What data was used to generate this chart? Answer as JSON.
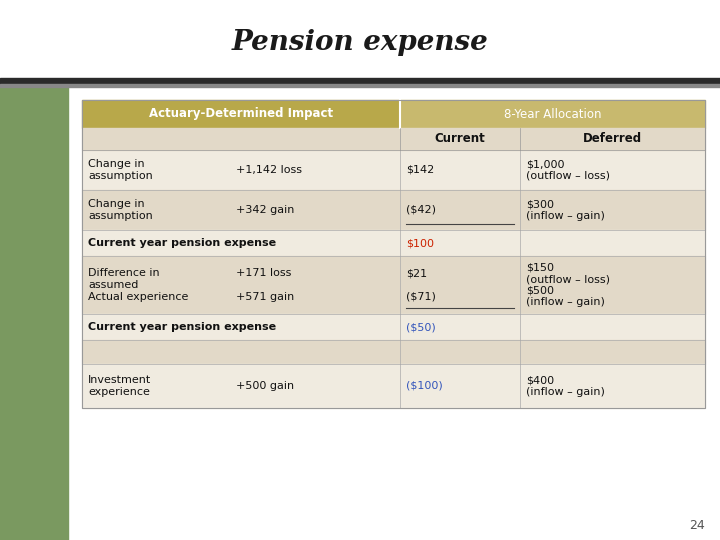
{
  "title": "Pension expense",
  "page_num": "24",
  "bg_color": "#ffffff",
  "left_sidebar_color": "#7a9960",
  "topbar_color": "#2a2a2a",
  "header_bg_dark": "#b8a84a",
  "header_bg_light": "#c8b96e",
  "row_bg_light": "#f0ebe0",
  "row_bg_medium": "#e2d9c8",
  "header1_text": "Actuary-Determined Impact",
  "header2_text": "8-Year Allocation",
  "subheader_current": "Current",
  "subheader_deferred": "Deferred",
  "rows": [
    {
      "col1": "Change in\nassumption",
      "col2": "+1,142 loss",
      "col3": "$142",
      "col4": "$1,000\n(outflow – loss)",
      "bold": false,
      "underline_col3": false,
      "col3_color": "#111111",
      "col4_color": "#111111",
      "bg": "#f0ebe0"
    },
    {
      "col1": "Change in\nassumption",
      "col2": "+342 gain",
      "col3": "($42)",
      "col4": "$300\n(inflow – gain)",
      "bold": false,
      "underline_col3": true,
      "col3_color": "#111111",
      "col4_color": "#111111",
      "bg": "#e2d9c8"
    },
    {
      "col1": "Current year pension expense",
      "col2": "",
      "col3": "$100",
      "col4": "",
      "bold": true,
      "underline_col3": false,
      "col3_color": "#cc2200",
      "col4_color": "#111111",
      "bg": "#f0ebe0"
    },
    {
      "col1": "Difference in\nassumed\nActual experience",
      "col2": "+171 loss\n\n+571 gain",
      "col3": "$21\n\n($71)",
      "col4": "$150\n(outflow – loss)\n$500\n(inflow – gain)",
      "bold": false,
      "underline_col3": true,
      "col3_color": "#111111",
      "col4_color": "#111111",
      "bg": "#e2d9c8"
    },
    {
      "col1": "Current year pension expense",
      "col2": "",
      "col3": "($50)",
      "col4": "",
      "bold": true,
      "underline_col3": false,
      "col3_color": "#3355bb",
      "col4_color": "#111111",
      "bg": "#f0ebe0"
    },
    {
      "col1": "",
      "col2": "",
      "col3": "",
      "col4": "",
      "bold": false,
      "underline_col3": false,
      "col3_color": "#111111",
      "col4_color": "#111111",
      "bg": "#e2d9c8"
    },
    {
      "col1": "Investment\nexperience",
      "col2": "+500 gain",
      "col3": "($100)",
      "col4": "$400\n(inflow – gain)",
      "bold": false,
      "underline_col3": false,
      "col3_color": "#3355bb",
      "col4_color": "#111111",
      "bg": "#f0ebe0"
    }
  ]
}
